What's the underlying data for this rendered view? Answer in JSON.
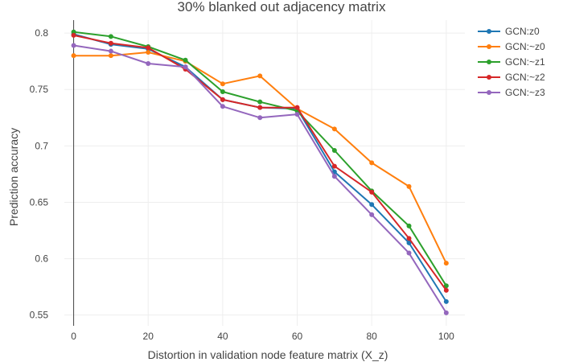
{
  "chart_data": {
    "type": "line",
    "title": "30% blanked out adjacency matrix",
    "xlabel": "Distortion in validation node feature matrix (X_z)",
    "ylabel": "Prediction accuracy",
    "xlim": [
      -2.5,
      105
    ],
    "ylim": [
      0.5405,
      0.8115
    ],
    "x_ticks": [
      0,
      20,
      40,
      60,
      80,
      100
    ],
    "x_tick_labels": [
      "0",
      "20",
      "40",
      "60",
      "80",
      "100"
    ],
    "y_ticks": [
      0.55,
      0.6,
      0.65,
      0.7,
      0.75,
      0.8
    ],
    "y_tick_labels": [
      "0.55",
      "0.6",
      "0.65",
      "0.7",
      "0.75",
      "0.8"
    ],
    "grid": true,
    "legend_position": "top-right",
    "x": [
      0,
      10,
      20,
      30,
      40,
      50,
      60,
      70,
      80,
      90,
      100
    ],
    "series": [
      {
        "name": "GCN:z0",
        "color": "#1f77b4",
        "values": [
          0.799,
          0.79,
          0.786,
          0.77,
          0.741,
          0.734,
          0.733,
          0.677,
          0.648,
          0.614,
          0.562
        ]
      },
      {
        "name": "GCN:~z0",
        "color": "#ff7f0e",
        "values": [
          0.78,
          0.78,
          0.783,
          0.775,
          0.755,
          0.762,
          0.733,
          0.715,
          0.685,
          0.664,
          0.596
        ]
      },
      {
        "name": "GCN:~z1",
        "color": "#2ca02c",
        "values": [
          0.801,
          0.797,
          0.788,
          0.776,
          0.748,
          0.739,
          0.731,
          0.696,
          0.66,
          0.629,
          0.576
        ]
      },
      {
        "name": "GCN:~z2",
        "color": "#d62728",
        "values": [
          0.798,
          0.791,
          0.787,
          0.768,
          0.741,
          0.734,
          0.734,
          0.682,
          0.659,
          0.618,
          0.572
        ]
      },
      {
        "name": "GCN:~z3",
        "color": "#9467bd",
        "values": [
          0.789,
          0.784,
          0.773,
          0.77,
          0.735,
          0.725,
          0.728,
          0.673,
          0.639,
          0.605,
          0.552
        ]
      }
    ]
  }
}
